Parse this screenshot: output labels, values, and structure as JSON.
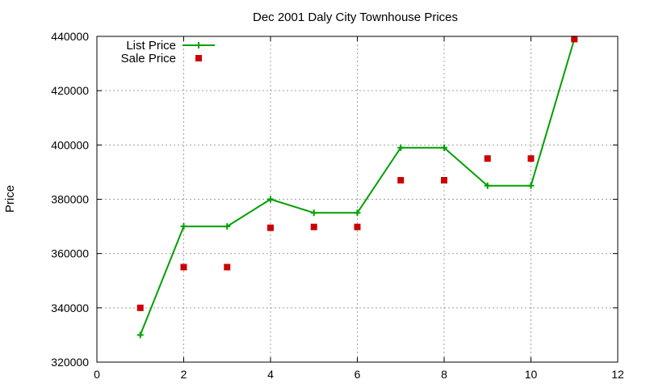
{
  "chart_data": {
    "type": "line",
    "title": "Dec 2001 Daly City Townhouse Prices",
    "xlabel": "",
    "ylabel": "Price",
    "xlim": [
      0,
      12
    ],
    "ylim": [
      320000,
      440000
    ],
    "xticks": [
      0,
      2,
      4,
      6,
      8,
      10,
      12
    ],
    "yticks": [
      320000,
      340000,
      360000,
      380000,
      400000,
      420000,
      440000
    ],
    "grid": true,
    "legend_position": "top-left",
    "series": [
      {
        "name": "List Price",
        "style": "line-with-plus-markers",
        "color": "#00a000",
        "x": [
          1,
          2,
          3,
          4,
          5,
          6,
          7,
          8,
          9,
          10,
          11
        ],
        "y": [
          330000,
          370000,
          370000,
          380000,
          375000,
          375000,
          399000,
          399000,
          385000,
          385000,
          439000
        ]
      },
      {
        "name": "Sale Price",
        "style": "square-markers",
        "color": "#cc0000",
        "x": [
          1,
          2,
          3,
          4,
          5,
          6,
          7,
          8,
          9,
          10,
          11
        ],
        "y": [
          340000,
          355000,
          355000,
          369500,
          369800,
          369800,
          387000,
          387000,
          395000,
          395000,
          439000
        ]
      }
    ]
  }
}
